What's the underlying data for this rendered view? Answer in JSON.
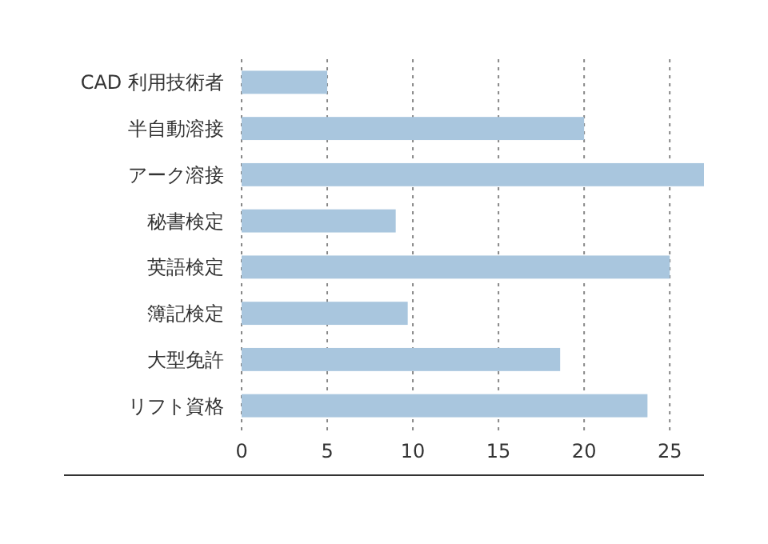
{
  "chart_data": {
    "type": "bar",
    "orientation": "horizontal",
    "categories": [
      "CAD 利用技術者",
      "半自動溶接",
      "アーク溶接",
      "秘書検定",
      "英語検定",
      "簿記検定",
      "大型免許",
      "リフト資格"
    ],
    "values": [
      5,
      20,
      27,
      9,
      25,
      9.7,
      18.6,
      23.7
    ],
    "color": "#a9c6de",
    "xlim": [
      0,
      27
    ],
    "xticks": [
      0,
      5,
      10,
      15,
      20,
      25
    ],
    "grid": "x"
  }
}
